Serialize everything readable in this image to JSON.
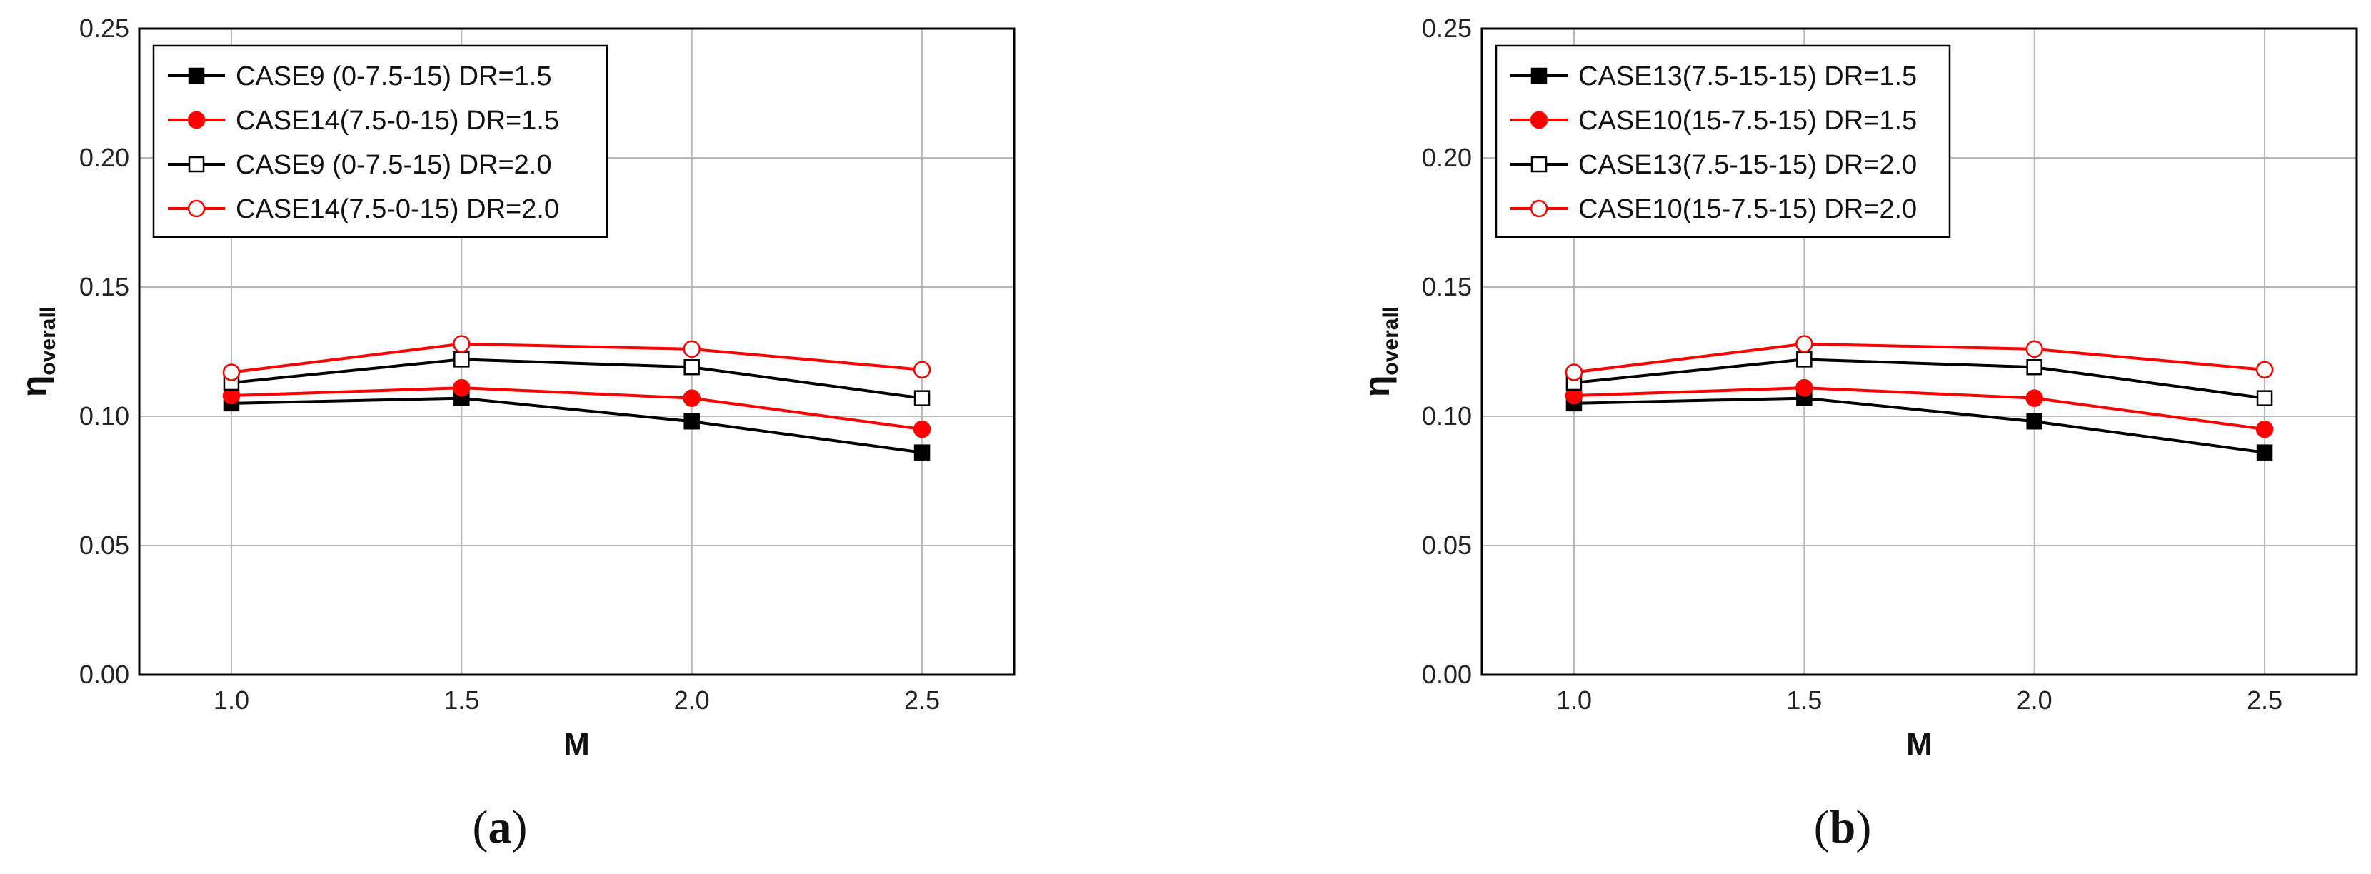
{
  "chart_data": [
    {
      "type": "line",
      "panel_label": "a",
      "xlabel": "M",
      "ylabel": "η",
      "ylabel_sub": "overall",
      "x": [
        1.0,
        1.5,
        2.0,
        2.5
      ],
      "x_tick_labels": [
        "1.0",
        "1.5",
        "2.0",
        "2.5"
      ],
      "y_tick_labels": [
        "0.00",
        "0.05",
        "0.10",
        "0.15",
        "0.20",
        "0.25"
      ],
      "xlim": [
        0.8,
        2.7
      ],
      "ylim": [
        0.0,
        0.25
      ],
      "grid": true,
      "legend_position": "top-left",
      "series": [
        {
          "name": "CASE9 (0-7.5-15) DR=1.5",
          "color": "#000000",
          "marker": "square",
          "filled": true,
          "values": [
            0.105,
            0.107,
            0.098,
            0.086
          ]
        },
        {
          "name": "CASE14(7.5-0-15) DR=1.5",
          "color": "#ff0000",
          "marker": "circle",
          "filled": true,
          "values": [
            0.108,
            0.111,
            0.107,
            0.095
          ]
        },
        {
          "name": "CASE9 (0-7.5-15) DR=2.0",
          "color": "#000000",
          "marker": "square",
          "filled": false,
          "values": [
            0.113,
            0.122,
            0.119,
            0.107
          ]
        },
        {
          "name": "CASE14(7.5-0-15) DR=2.0",
          "color": "#ff0000",
          "marker": "circle",
          "filled": false,
          "values": [
            0.117,
            0.128,
            0.126,
            0.118
          ]
        }
      ]
    },
    {
      "type": "line",
      "panel_label": "b",
      "xlabel": "M",
      "ylabel": "η",
      "ylabel_sub": "overall",
      "x": [
        1.0,
        1.5,
        2.0,
        2.5
      ],
      "x_tick_labels": [
        "1.0",
        "1.5",
        "2.0",
        "2.5"
      ],
      "y_tick_labels": [
        "0.00",
        "0.05",
        "0.10",
        "0.15",
        "0.20",
        "0.25"
      ],
      "xlim": [
        0.8,
        2.7
      ],
      "ylim": [
        0.0,
        0.25
      ],
      "grid": true,
      "legend_position": "top-left",
      "series": [
        {
          "name": "CASE13(7.5-15-15) DR=1.5",
          "color": "#000000",
          "marker": "square",
          "filled": true,
          "values": [
            0.105,
            0.107,
            0.098,
            0.086
          ]
        },
        {
          "name": "CASE10(15-7.5-15) DR=1.5",
          "color": "#ff0000",
          "marker": "circle",
          "filled": true,
          "values": [
            0.108,
            0.111,
            0.107,
            0.095
          ]
        },
        {
          "name": "CASE13(7.5-15-15) DR=2.0",
          "color": "#000000",
          "marker": "square",
          "filled": false,
          "values": [
            0.113,
            0.122,
            0.119,
            0.107
          ]
        },
        {
          "name": "CASE10(15-7.5-15) DR=2.0",
          "color": "#ff0000",
          "marker": "circle",
          "filled": false,
          "values": [
            0.117,
            0.128,
            0.126,
            0.118
          ]
        }
      ]
    }
  ]
}
